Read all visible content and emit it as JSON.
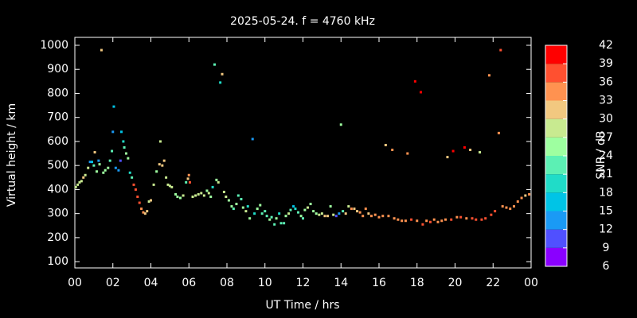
{
  "chart_data": {
    "type": "scatter",
    "title": "2025-05-24. f = 4760 kHz",
    "xlabel": "UT Time / hrs",
    "ylabel": "Virtual height / km",
    "colorbar_label": "SNR / dB",
    "xlim": [
      0,
      24
    ],
    "xticks": [
      {
        "value": 0,
        "label": "00"
      },
      {
        "value": 2,
        "label": "02"
      },
      {
        "value": 4,
        "label": "04"
      },
      {
        "value": 6,
        "label": "06"
      },
      {
        "value": 8,
        "label": "08"
      },
      10,
      12,
      14,
      16,
      18,
      20,
      22,
      {
        "value": 24,
        "label": "00"
      }
    ],
    "ylim": [
      74,
      1033
    ],
    "yticks": [
      100,
      200,
      300,
      400,
      500,
      600,
      700,
      800,
      900,
      1000
    ],
    "cblim": [
      6,
      42
    ],
    "cbticks": [
      6,
      9,
      12,
      15,
      18,
      21,
      24,
      27,
      30,
      33,
      36,
      39,
      42
    ],
    "cbcolors": [
      "#8a00ff",
      "#5050ff",
      "#1a9af5",
      "#00c4e6",
      "#20dcc8",
      "#5cf0b4",
      "#9effa0",
      "#c8ea90",
      "#f2c880",
      "#ff9250",
      "#ff5030",
      "#ff0000"
    ],
    "x": [
      0.05,
      0.15,
      0.25,
      0.35,
      0.45,
      0.55,
      0.7,
      0.8,
      0.9,
      1.0,
      1.05,
      1.15,
      1.25,
      1.3,
      1.4,
      1.5,
      1.6,
      1.75,
      1.85,
      1.95,
      2.0,
      2.05,
      2.15,
      2.3,
      2.4,
      2.45,
      2.55,
      2.6,
      2.7,
      2.8,
      2.9,
      3.0,
      3.1,
      3.2,
      3.3,
      3.4,
      3.5,
      3.6,
      3.7,
      3.8,
      3.9,
      4.0,
      4.15,
      4.3,
      4.45,
      4.5,
      4.6,
      4.7,
      4.8,
      4.9,
      5.0,
      5.1,
      5.3,
      5.4,
      5.55,
      5.7,
      5.85,
      5.95,
      6.0,
      6.05,
      6.2,
      6.35,
      6.5,
      6.65,
      6.8,
      6.95,
      7.05,
      7.15,
      7.25,
      7.35,
      7.45,
      7.55,
      7.65,
      7.75,
      7.85,
      7.95,
      8.1,
      8.25,
      8.35,
      8.5,
      8.6,
      8.75,
      8.85,
      9.0,
      9.1,
      9.2,
      9.35,
      9.45,
      9.6,
      9.75,
      9.85,
      10.0,
      10.1,
      10.25,
      10.35,
      10.5,
      10.6,
      10.75,
      10.85,
      11.0,
      11.1,
      11.25,
      11.35,
      11.5,
      11.6,
      11.75,
      11.9,
      12.0,
      12.1,
      12.25,
      12.4,
      12.55,
      12.7,
      12.85,
      13.0,
      13.15,
      13.3,
      13.45,
      13.6,
      13.75,
      13.9,
      14.0,
      14.1,
      14.25,
      14.4,
      14.55,
      14.7,
      14.85,
      15.0,
      15.15,
      15.3,
      15.45,
      15.6,
      15.8,
      16.0,
      16.2,
      16.35,
      16.5,
      16.7,
      16.8,
      17.0,
      17.2,
      17.4,
      17.5,
      17.7,
      17.9,
      18.0,
      18.2,
      18.3,
      18.5,
      18.7,
      18.9,
      19.1,
      19.3,
      19.5,
      19.6,
      19.8,
      19.9,
      20.1,
      20.3,
      20.5,
      20.6,
      20.8,
      20.9,
      21.1,
      21.3,
      21.4,
      21.6,
      21.8,
      21.9,
      22.1,
      22.3,
      22.4,
      22.5,
      22.7,
      22.9,
      23.1,
      23.3,
      23.5,
      23.7,
      23.9
    ],
    "y": [
      410,
      420,
      430,
      435,
      450,
      460,
      490,
      515,
      515,
      500,
      555,
      475,
      520,
      505,
      980,
      470,
      480,
      490,
      520,
      560,
      640,
      745,
      490,
      480,
      520,
      640,
      600,
      575,
      550,
      530,
      470,
      450,
      420,
      400,
      370,
      345,
      320,
      305,
      300,
      310,
      350,
      355,
      420,
      475,
      505,
      600,
      500,
      520,
      450,
      420,
      415,
      410,
      380,
      370,
      365,
      375,
      430,
      445,
      460,
      430,
      370,
      375,
      380,
      385,
      375,
      395,
      385,
      370,
      410,
      920,
      440,
      430,
      845,
      880,
      390,
      370,
      355,
      330,
      320,
      340,
      375,
      360,
      325,
      310,
      330,
      280,
      610,
      300,
      320,
      335,
      300,
      310,
      290,
      275,
      285,
      255,
      280,
      300,
      260,
      260,
      290,
      300,
      315,
      330,
      320,
      305,
      290,
      280,
      315,
      325,
      340,
      310,
      300,
      295,
      300,
      290,
      290,
      330,
      295,
      290,
      300,
      670,
      310,
      300,
      330,
      320,
      320,
      310,
      305,
      290,
      320,
      300,
      290,
      295,
      285,
      290,
      585,
      290,
      565,
      280,
      275,
      270,
      270,
      550,
      275,
      850,
      270,
      805,
      255,
      270,
      265,
      275,
      265,
      270,
      275,
      535,
      275,
      560,
      285,
      285,
      575,
      280,
      565,
      280,
      275,
      555,
      275,
      280,
      875,
      295,
      310,
      635,
      980,
      330,
      325,
      320,
      330,
      350,
      365,
      375,
      380
    ],
    "snr": [
      29,
      28,
      27,
      29,
      30,
      28,
      29,
      14,
      16,
      23,
      31,
      26,
      13,
      24,
      31,
      25,
      26,
      24,
      23,
      21,
      14,
      16,
      12,
      14,
      10,
      15,
      19,
      21,
      24,
      25,
      20,
      22,
      38,
      37,
      36,
      36,
      35,
      34,
      31,
      30,
      28,
      31,
      29,
      26,
      31,
      27,
      31,
      30,
      29,
      27,
      28,
      28,
      26,
      24,
      25,
      28,
      22,
      32,
      33,
      38,
      28,
      27,
      29,
      28,
      28,
      26,
      27,
      24,
      19,
      22,
      26,
      27,
      18,
      32,
      29,
      27,
      26,
      25,
      23,
      25,
      21,
      22,
      24,
      27,
      20,
      26,
      14,
      20,
      24,
      25,
      22,
      21,
      23,
      24,
      22,
      22,
      26,
      20,
      22,
      21,
      24,
      27,
      23,
      15,
      20,
      22,
      25,
      22,
      24,
      27,
      25,
      24,
      26,
      28,
      29,
      31,
      30,
      26,
      27,
      10,
      14,
      25,
      22,
      30,
      29,
      33,
      32,
      30,
      33,
      34,
      33,
      32,
      34,
      33,
      35,
      34,
      30,
      35,
      33,
      34,
      35,
      34,
      35,
      34,
      36,
      39,
      35,
      40,
      36,
      35,
      36,
      34,
      35,
      33,
      35,
      30,
      36,
      39,
      35,
      36,
      40,
      35,
      30,
      36,
      37,
      28,
      38,
      37,
      34,
      37,
      36,
      33,
      38,
      35,
      34,
      33,
      34,
      34,
      33,
      32,
      34
    ]
  }
}
